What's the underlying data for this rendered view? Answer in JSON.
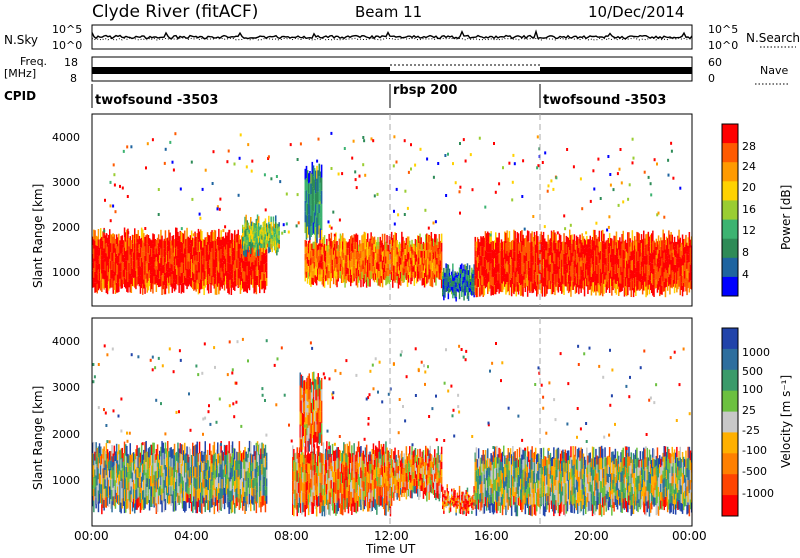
{
  "header": {
    "station": "Clyde River (fitACF)",
    "beam": "Beam 11",
    "date": "10/Dec/2014"
  },
  "noise_panel": {
    "left_label": "N.Sky",
    "right_label": "N.Search",
    "left_ticks": [
      "10^5",
      "10^0"
    ],
    "right_ticks": [
      "10^5",
      "10^0"
    ]
  },
  "freq_panel": {
    "left_label_1": "Freq.",
    "left_label_2": "[MHz]",
    "left_ticks": [
      "18",
      "8"
    ],
    "right_ticks": [
      "60",
      "0"
    ],
    "right_label": "Nave"
  },
  "cpid_panel": {
    "label": "CPID",
    "segments": [
      {
        "name": "twofsound -3503",
        "start_hr": 0,
        "end_hr": 12
      },
      {
        "name": "rbsp 200",
        "start_hr": 12,
        "end_hr": 18
      },
      {
        "name": "twofsound -3503",
        "start_hr": 18,
        "end_hr": 24
      }
    ]
  },
  "power_panel": {
    "ylabel": "Slant Range [km]",
    "yticks": [
      "1000",
      "2000",
      "3000",
      "4000"
    ],
    "colorbar_label": "Power [dB]",
    "colorbar_ticks": [
      "28",
      "24",
      "20",
      "16",
      "12",
      "8",
      "4"
    ],
    "colors": [
      "#ff0000",
      "#ff5a00",
      "#ff9a00",
      "#ffd200",
      "#9acd32",
      "#3cb371",
      "#2e8b57",
      "#1e64a0",
      "#0000ff"
    ]
  },
  "velocity_panel": {
    "ylabel": "Slant Range [km]",
    "yticks": [
      "1000",
      "2000",
      "3000",
      "4000"
    ],
    "colorbar_label": "Velocity [m s⁻¹]",
    "colorbar_ticks": [
      "1000",
      "500",
      "100",
      "25",
      "-25",
      "-100",
      "-500",
      "-1000"
    ],
    "colors": [
      "#2244aa",
      "#2e6e9e",
      "#3a9a6a",
      "#6cc040",
      "#c8c8c8",
      "#ffb000",
      "#ff8000",
      "#ff4400",
      "#ff0000"
    ]
  },
  "x_axis": {
    "ticks": [
      "00:00",
      "04:00",
      "08:00",
      "12:00",
      "16:00",
      "20:00",
      "00:00"
    ],
    "label": "Time UT"
  },
  "chart_data": {
    "type": "heatmap",
    "title": "Clyde River (fitACF)",
    "subtitle": "Beam 11",
    "date": "10/Dec/2014",
    "xlabel": "Time UT",
    "ylabel": "Slant Range [km]",
    "xlim_hr": [
      0,
      24
    ],
    "ylim_km": [
      180,
      4500
    ],
    "panels": [
      {
        "name": "Power",
        "units": "dB",
        "colorbar_range": [
          0,
          30
        ],
        "regions": [
          {
            "start_hr": 0.0,
            "end_hr": 7.0,
            "range_km": [
              550,
              1800
            ],
            "value": 28
          },
          {
            "start_hr": 6.0,
            "end_hr": 7.5,
            "range_km": [
              1400,
              2100
            ],
            "value": 14
          },
          {
            "start_hr": 8.5,
            "end_hr": 14.0,
            "range_km": [
              700,
              1700
            ],
            "value": 24
          },
          {
            "start_hr": 8.5,
            "end_hr": 9.2,
            "range_km": [
              1700,
              3300
            ],
            "value": 8
          },
          {
            "start_hr": 14.0,
            "end_hr": 15.3,
            "range_km": [
              400,
              1000
            ],
            "value": 6
          },
          {
            "start_hr": 15.3,
            "end_hr": 24.0,
            "range_km": [
              500,
              1750
            ],
            "value": 28
          }
        ]
      },
      {
        "name": "Velocity",
        "units": "m s-1",
        "colorbar_range": [
          -1000,
          1000
        ],
        "regions": [
          {
            "start_hr": 0.0,
            "end_hr": 7.0,
            "range_km": [
              550,
              1800
            ],
            "value": 200
          },
          {
            "start_hr": 8.0,
            "end_hr": 12.0,
            "range_km": [
              500,
              1800
            ],
            "value": -300
          },
          {
            "start_hr": 8.3,
            "end_hr": 9.2,
            "range_km": [
              1800,
              3300
            ],
            "value": -400
          },
          {
            "start_hr": 12.0,
            "end_hr": 14.0,
            "range_km": [
              800,
              1700
            ],
            "value": -400
          },
          {
            "start_hr": 14.0,
            "end_hr": 15.3,
            "range_km": [
              500,
              900
            ],
            "value": -600
          },
          {
            "start_hr": 15.3,
            "end_hr": 24.0,
            "range_km": [
              500,
              1700
            ],
            "value": 150
          }
        ]
      }
    ]
  }
}
